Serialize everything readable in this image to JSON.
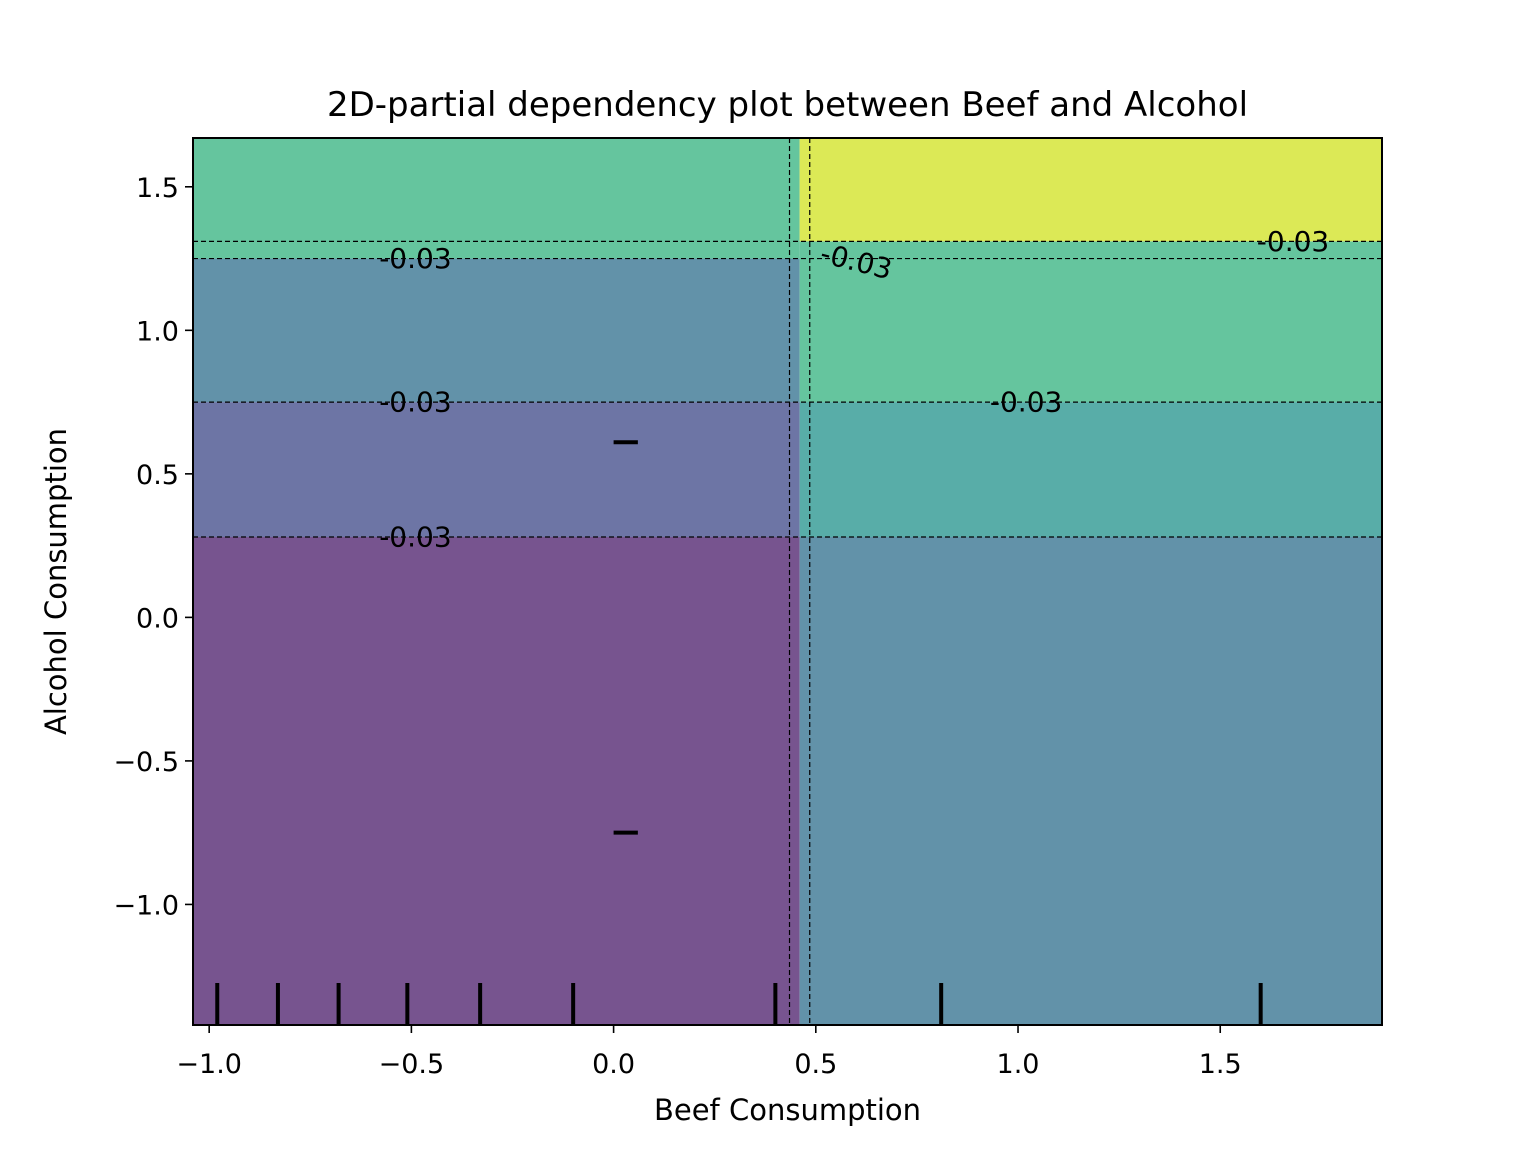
{
  "chart_data": {
    "type": "contour",
    "title": "2D-partial dependency plot between Beef and Alcohol",
    "xlabel": "Beef Consumption",
    "ylabel": "Alcohol Consumption",
    "xlim": [
      -1.04,
      1.9
    ],
    "ylim": [
      -1.42,
      1.67
    ],
    "xticks": [
      -1.0,
      -0.5,
      0.0,
      0.5,
      1.0,
      1.5
    ],
    "xtick_labels": [
      "−1.0",
      "−0.5",
      "0.0",
      "0.5",
      "1.0",
      "1.5"
    ],
    "yticks": [
      -1.0,
      -0.5,
      0.0,
      0.5,
      1.0,
      1.5
    ],
    "ytick_labels": [
      "−1.0",
      "−0.5",
      "0.0",
      "0.5",
      "1.0",
      "1.5"
    ],
    "split_x": 0.46,
    "region_boundaries_y": [
      0.28,
      0.75,
      1.25,
      1.31
    ],
    "regions_left": [
      {
        "y_from": -1.42,
        "y_to": 0.28,
        "color": "#77548f"
      },
      {
        "y_from": 0.28,
        "y_to": 0.75,
        "color": "#6d75a5"
      },
      {
        "y_from": 0.75,
        "y_to": 1.25,
        "color": "#6292a9"
      },
      {
        "y_from": 1.25,
        "y_to": 1.67,
        "color": "#65c59e"
      }
    ],
    "regions_right": [
      {
        "y_from": -1.42,
        "y_to": 0.28,
        "color": "#6292a9"
      },
      {
        "y_from": 0.28,
        "y_to": 0.75,
        "color": "#58ada8"
      },
      {
        "y_from": 0.75,
        "y_to": 1.31,
        "color": "#65c59e"
      },
      {
        "y_from": 1.31,
        "y_to": 1.67,
        "color": "#dce956"
      }
    ],
    "contour_labels": [
      {
        "text": "-0.03",
        "x": -0.49,
        "y": 1.25
      },
      {
        "text": "-0.03",
        "x": -0.49,
        "y": 0.75
      },
      {
        "text": "-0.03",
        "x": -0.49,
        "y": 0.28
      },
      {
        "text": "-0.03",
        "x": 1.68,
        "y": 1.31
      },
      {
        "text": "-0.03",
        "x": 1.02,
        "y": 0.75
      },
      {
        "text": "-0.03",
        "x": 0.6,
        "y": 1.24
      }
    ],
    "rug_x": [
      -0.98,
      -0.83,
      -0.68,
      -0.51,
      -0.33,
      -0.1,
      0.4,
      0.81,
      1.6
    ],
    "rug_y": [
      0.61,
      -0.75
    ]
  }
}
